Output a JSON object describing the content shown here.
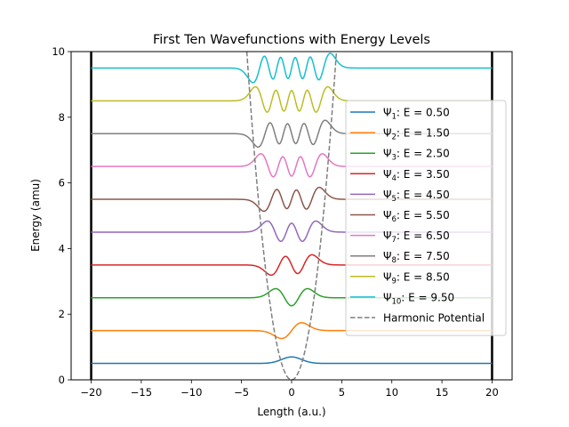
{
  "chart_data": {
    "type": "line",
    "title": "First Ten Wavefunctions with Energy Levels",
    "xlabel": "Length (a.u.)",
    "ylabel": "Energy (amu)",
    "xlim": [
      -22,
      22
    ],
    "ylim": [
      0,
      10
    ],
    "xticks": [
      -20,
      -15,
      -10,
      -5,
      0,
      5,
      10,
      15,
      20
    ],
    "yticks": [
      0,
      2,
      4,
      6,
      8,
      10
    ],
    "grid": false,
    "legend_position": "right",
    "walls": [
      -20,
      20
    ],
    "wavefunction_scale": 0.22,
    "series": [
      {
        "symbol": "Ψ",
        "sub": "1",
        "label": ": E = 0.50",
        "n": 0,
        "energy": 0.5,
        "color": "#1f77b4"
      },
      {
        "symbol": "Ψ",
        "sub": "2",
        "label": ": E = 1.50",
        "n": 1,
        "energy": 1.5,
        "color": "#ff7f0e"
      },
      {
        "symbol": "Ψ",
        "sub": "3",
        "label": ": E = 2.50",
        "n": 2,
        "energy": 2.5,
        "color": "#2ca02c"
      },
      {
        "symbol": "Ψ",
        "sub": "4",
        "label": ": E = 3.50",
        "n": 3,
        "energy": 3.5,
        "color": "#d62728"
      },
      {
        "symbol": "Ψ",
        "sub": "5",
        "label": ": E = 4.50",
        "n": 4,
        "energy": 4.5,
        "color": "#9467bd"
      },
      {
        "symbol": "Ψ",
        "sub": "6",
        "label": ": E = 5.50",
        "n": 5,
        "energy": 5.5,
        "color": "#8c564b"
      },
      {
        "symbol": "Ψ",
        "sub": "7",
        "label": ": E = 6.50",
        "n": 6,
        "energy": 6.5,
        "color": "#e377c2"
      },
      {
        "symbol": "Ψ",
        "sub": "8",
        "label": ": E = 7.50",
        "n": 7,
        "energy": 7.5,
        "color": "#7f7f7f"
      },
      {
        "symbol": "Ψ",
        "sub": "9",
        "label": ": E = 8.50",
        "n": 8,
        "energy": 8.5,
        "color": "#bcbd22"
      },
      {
        "symbol": "Ψ",
        "sub": "10",
        "label": ": E = 9.50",
        "n": 9,
        "energy": 9.5,
        "color": "#17becf"
      }
    ],
    "potential": {
      "label": "Harmonic Potential",
      "formula": "V = 0.5 x^2",
      "color": "#7f7f7f",
      "style": "dashed"
    }
  }
}
